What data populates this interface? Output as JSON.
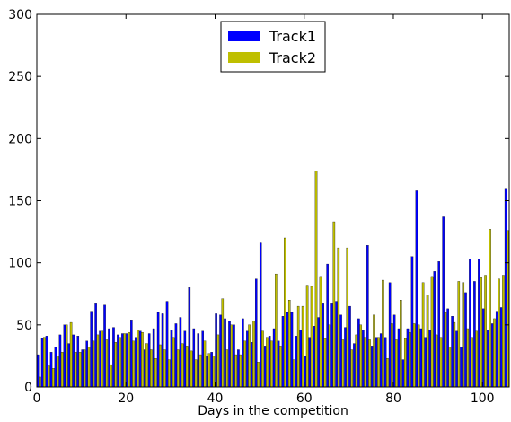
{
  "chart_data": {
    "type": "bar",
    "x_label": "Days in the competition",
    "x": [
      0,
      1,
      2,
      3,
      4,
      5,
      6,
      7,
      8,
      9,
      10,
      11,
      12,
      13,
      14,
      15,
      16,
      17,
      18,
      19,
      20,
      21,
      22,
      23,
      24,
      25,
      26,
      27,
      28,
      29,
      30,
      31,
      32,
      33,
      34,
      35,
      36,
      37,
      38,
      39,
      40,
      41,
      42,
      43,
      44,
      45,
      46,
      47,
      48,
      49,
      50,
      51,
      52,
      53,
      54,
      55,
      56,
      57,
      58,
      59,
      60,
      61,
      62,
      63,
      64,
      65,
      66,
      67,
      68,
      69,
      70,
      71,
      72,
      73,
      74,
      75,
      76,
      77,
      78,
      79,
      80,
      81,
      82,
      83,
      84,
      85,
      86,
      87,
      88,
      89,
      90,
      91,
      92,
      93,
      94,
      95,
      96,
      97,
      98,
      99,
      100,
      101,
      102,
      103,
      104,
      105
    ],
    "series": [
      {
        "name": "Track1",
        "color": "#0000ff",
        "values": [
          26,
          39,
          41,
          28,
          32,
          42,
          50,
          35,
          42,
          41,
          30,
          37,
          61,
          67,
          45,
          66,
          47,
          48,
          42,
          43,
          43,
          54,
          40,
          45,
          30,
          43,
          47,
          60,
          59,
          69,
          46,
          51,
          56,
          45,
          80,
          47,
          43,
          45,
          25,
          28,
          59,
          58,
          55,
          53,
          50,
          30,
          55,
          45,
          36,
          87,
          116,
          33,
          41,
          47,
          37,
          57,
          60,
          60,
          41,
          46,
          25,
          40,
          49,
          56,
          67,
          99,
          67,
          69,
          58,
          48,
          65,
          35,
          55,
          46,
          114,
          33,
          40,
          43,
          40,
          84,
          58,
          47,
          22,
          47,
          105,
          158,
          47,
          40,
          46,
          93,
          101,
          137,
          63,
          57,
          45,
          32,
          76,
          103,
          85,
          103,
          63,
          46,
          51,
          61,
          64,
          160
        ]
      },
      {
        "name": "Track2",
        "color": "#bfbf00",
        "values": [
          8,
          40,
          17,
          15,
          25,
          28,
          50,
          52,
          28,
          28,
          30,
          32,
          37,
          42,
          45,
          38,
          18,
          36,
          40,
          43,
          44,
          37,
          46,
          44,
          35,
          30,
          23,
          34,
          30,
          22,
          40,
          30,
          35,
          33,
          29,
          22,
          26,
          37,
          27,
          25,
          42,
          71,
          30,
          50,
          26,
          26,
          37,
          50,
          53,
          20,
          45,
          40,
          37,
          91,
          33,
          120,
          70,
          22,
          65,
          65,
          82,
          81,
          174,
          89,
          39,
          50,
          133,
          112,
          38,
          112,
          30,
          42,
          50,
          40,
          38,
          58,
          40,
          86,
          23,
          51,
          38,
          70,
          39,
          44,
          51,
          50,
          84,
          74,
          89,
          42,
          40,
          60,
          32,
          52,
          85,
          84,
          47,
          40,
          45,
          88,
          90,
          127,
          55,
          87,
          90,
          126
        ]
      }
    ],
    "xlim": [
      0,
      106
    ],
    "xticks": [
      0,
      20,
      40,
      60,
      80,
      100
    ],
    "ylim": [
      0,
      300
    ],
    "yticks": [
      0,
      50,
      100,
      150,
      200,
      250,
      300
    ],
    "legend": "upper center",
    "grid": false
  }
}
